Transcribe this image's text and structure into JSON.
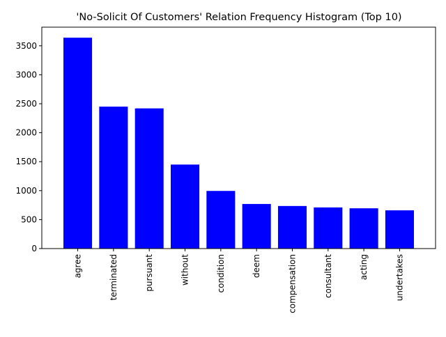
{
  "chart_data": {
    "type": "bar",
    "title": "'No-Solicit Of Customers' Relation Frequency Histogram (Top 10)",
    "xlabel": "",
    "ylabel": "",
    "categories": [
      "agree",
      "terminated",
      "pursuant",
      "without",
      "condition",
      "deem",
      "compensation",
      "consultant",
      "acting",
      "undertakes"
    ],
    "values": [
      3640,
      2450,
      2420,
      1450,
      995,
      770,
      735,
      710,
      695,
      660
    ],
    "ylim": [
      0,
      3822
    ],
    "yticks": [
      0,
      500,
      1000,
      1500,
      2000,
      2500,
      3000,
      3500
    ],
    "ytick_labels": [
      "0",
      "500",
      "1000",
      "1500",
      "2000",
      "2500",
      "3000",
      "3500"
    ],
    "bar_color": "#0000ff",
    "grid": false,
    "legend": "none"
  }
}
